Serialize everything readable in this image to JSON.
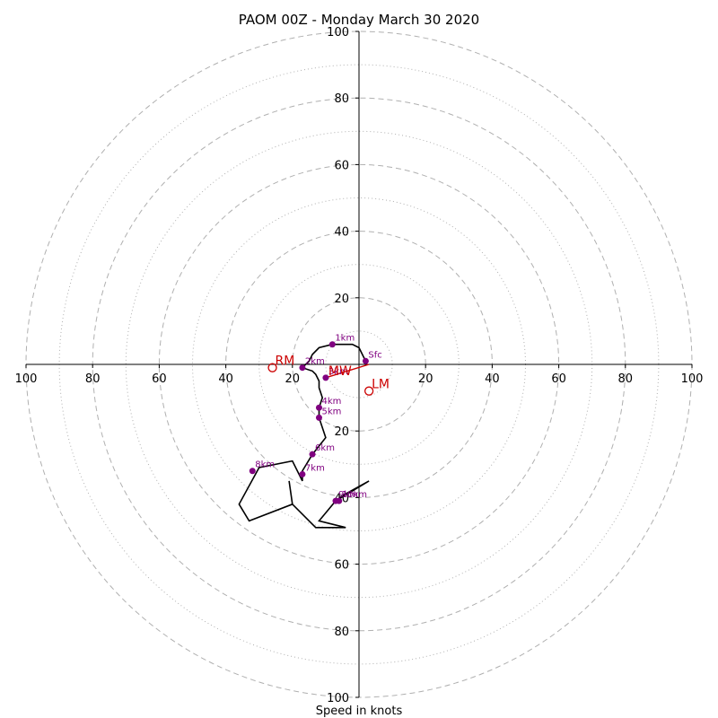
{
  "chart_data": {
    "type": "hodograph",
    "title": "PAOM 00Z - Monday March 30 2020",
    "xlabel": "Speed in knots",
    "range": [
      -100,
      100
    ],
    "ring_major": [
      20,
      40,
      60,
      80,
      100
    ],
    "ring_minor": [
      10,
      30,
      50,
      70,
      90
    ],
    "x_tick_values": [
      -100,
      -80,
      -60,
      -40,
      -20,
      20,
      40,
      60,
      80,
      100
    ],
    "x_tick_labels": [
      "100",
      "80",
      "60",
      "40",
      "20",
      "20",
      "40",
      "60",
      "80",
      "100"
    ],
    "y_tick_values": [
      100,
      80,
      60,
      40,
      20,
      -20,
      -40,
      -60,
      -80,
      -100
    ],
    "y_tick_labels": [
      "100",
      "80",
      "60",
      "40",
      "20",
      "20",
      "40",
      "60",
      "80",
      "100"
    ],
    "profile": [
      {
        "u": 2,
        "v": 1
      },
      {
        "u": 0,
        "v": 5
      },
      {
        "u": -2,
        "v": 6
      },
      {
        "u": -8,
        "v": 6
      },
      {
        "u": -12,
        "v": 5
      },
      {
        "u": -14,
        "v": 3
      },
      {
        "u": -15,
        "v": 1
      },
      {
        "u": -16,
        "v": 0
      },
      {
        "u": -17,
        "v": -1
      },
      {
        "u": -14,
        "v": -2
      },
      {
        "u": -13,
        "v": -3
      },
      {
        "u": -12,
        "v": -5
      },
      {
        "u": -12,
        "v": -7
      },
      {
        "u": -11,
        "v": -10
      },
      {
        "u": -12,
        "v": -13
      },
      {
        "u": -12,
        "v": -16
      },
      {
        "u": -10,
        "v": -22
      },
      {
        "u": -14,
        "v": -27
      },
      {
        "u": -17,
        "v": -32
      },
      {
        "u": -17,
        "v": -35
      },
      {
        "u": -20,
        "v": -29
      },
      {
        "u": -30,
        "v": -31
      },
      {
        "u": -36,
        "v": -42
      },
      {
        "u": -33,
        "v": -47
      },
      {
        "u": -20,
        "v": -42
      },
      {
        "u": -21,
        "v": -35
      },
      {
        "u": -20,
        "v": -42
      },
      {
        "u": -13,
        "v": -49
      },
      {
        "u": -4,
        "v": -49
      },
      {
        "u": -12,
        "v": -47
      },
      {
        "u": -7,
        "v": -41
      },
      {
        "u": 3,
        "v": -35
      },
      {
        "u": -6,
        "v": -40
      }
    ],
    "height_markers": [
      {
        "label": "Sfc",
        "u": 2,
        "v": 1
      },
      {
        "label": "1km",
        "u": -8,
        "v": 6
      },
      {
        "label": "2km",
        "u": -17,
        "v": -1
      },
      {
        "label": "3km",
        "u": -10,
        "v": -4
      },
      {
        "label": "4km",
        "u": -12,
        "v": -13
      },
      {
        "label": "5km",
        "u": -12,
        "v": -16
      },
      {
        "label": "6km",
        "u": -14,
        "v": -27
      },
      {
        "label": "7km",
        "u": -17,
        "v": -33
      },
      {
        "label": "8km",
        "u": -32,
        "v": -32
      },
      {
        "label": "9km",
        "u": -7,
        "v": -41
      },
      {
        "label": "10km",
        "u": -6,
        "v": -41
      }
    ],
    "storm_motion": [
      {
        "label": "RM",
        "u": -26,
        "v": -1
      },
      {
        "label": "LM",
        "u": 3,
        "v": -8
      },
      {
        "label": "MW",
        "u": -10,
        "v": -4
      }
    ],
    "mean_wind_vector": {
      "u": 3,
      "v": 0
    },
    "colors": {
      "profile": "#000000",
      "markers": "#800080",
      "storm_motion": "#cc0000",
      "grid": "#b0b0b0",
      "axes": "#000000"
    }
  }
}
